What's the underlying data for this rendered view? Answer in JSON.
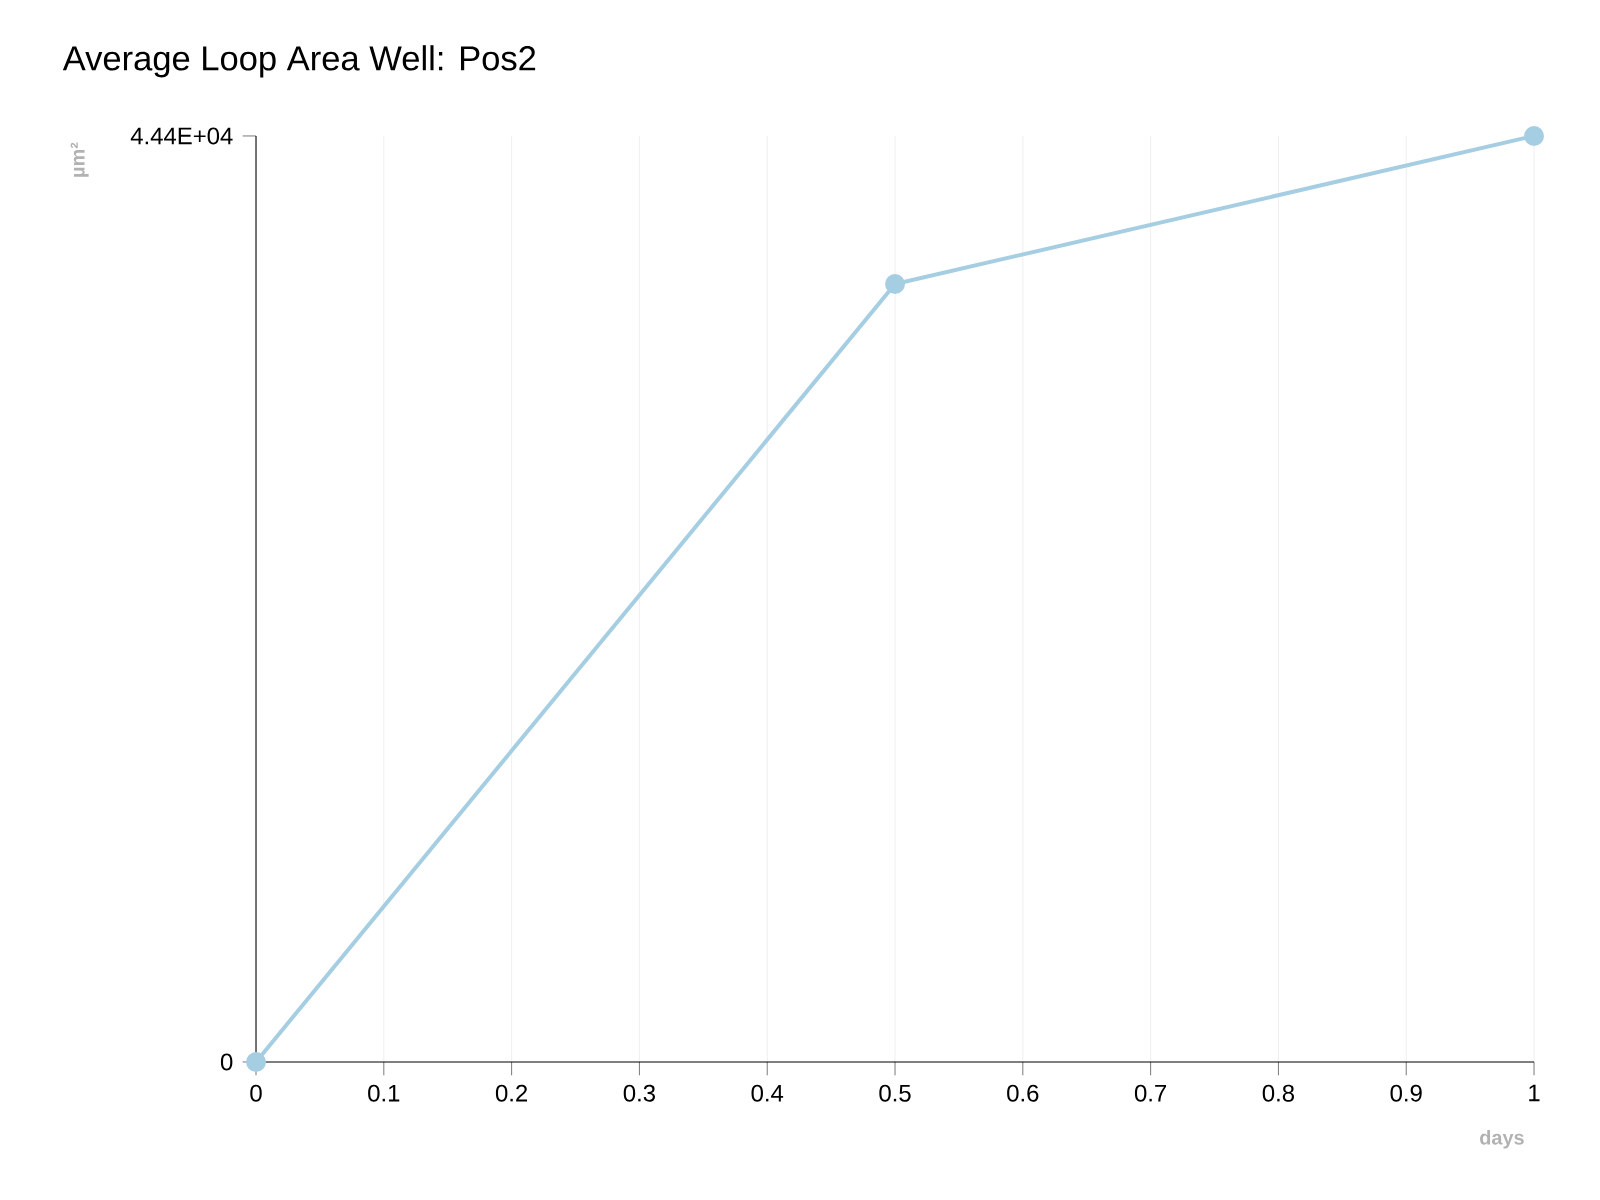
{
  "chart_data": {
    "type": "line",
    "title": "Average Loop Area Well: Pos2",
    "xlabel": "days",
    "ylabel": "µm²",
    "x": [
      0,
      0.5,
      1
    ],
    "series": [
      {
        "color": "#a6cee3",
        "values": [
          0,
          37300,
          44400
        ]
      }
    ],
    "xlim": [
      0,
      1
    ],
    "xticks": [
      0,
      0.1,
      0.2,
      0.3,
      0.4,
      0.5,
      0.6,
      0.7,
      0.8,
      0.9,
      1
    ],
    "ylim": [
      0,
      44400
    ],
    "yticks": [
      0,
      {
        "value": 44400,
        "label": "4.44E+04"
      }
    ],
    "grid": "x",
    "marker": "circle",
    "line_style": "solid"
  }
}
